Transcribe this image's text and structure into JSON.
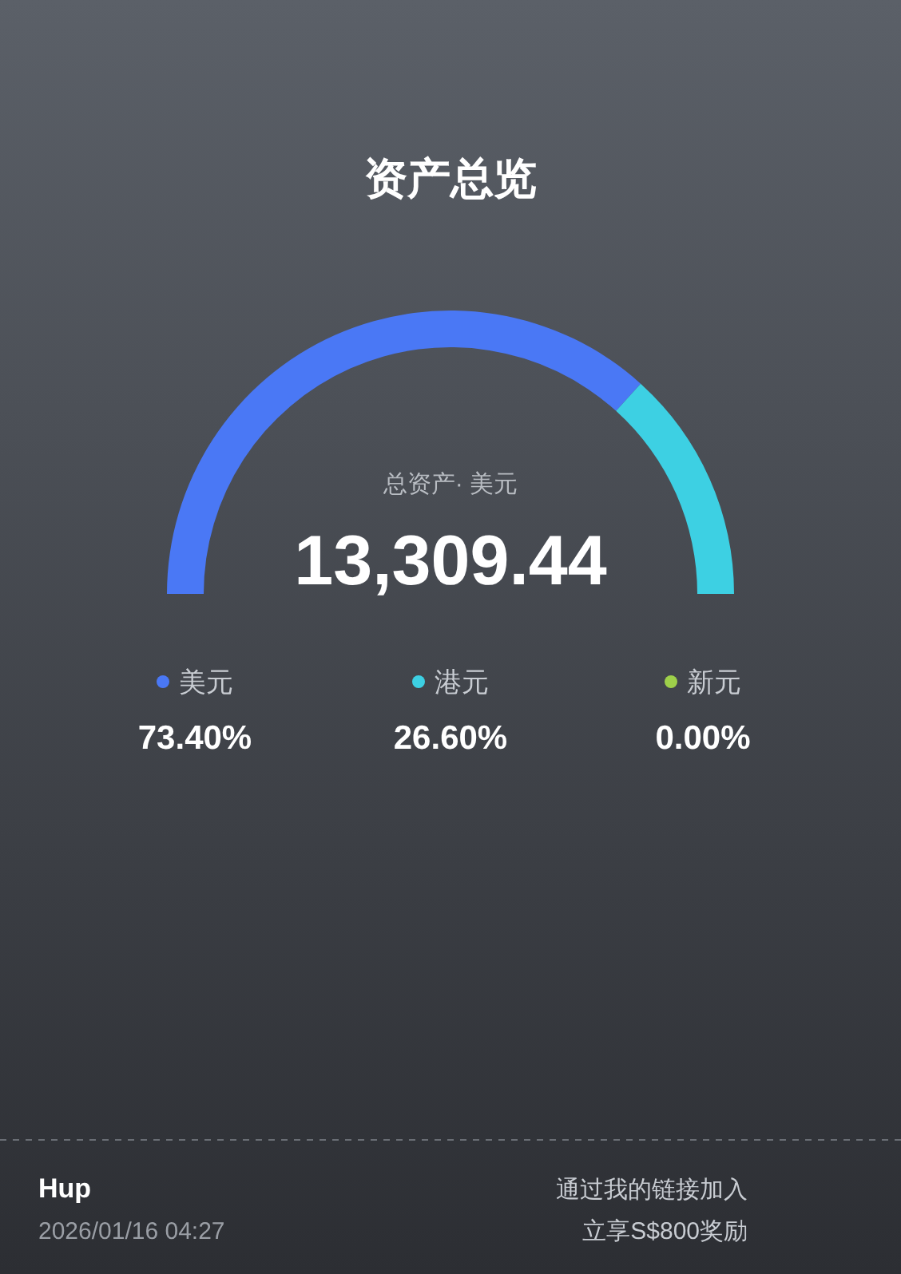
{
  "chart_data": {
    "type": "donut",
    "title": "资产总览",
    "categories": [
      "美元",
      "港元",
      "新元"
    ],
    "values": [
      73.4,
      26.6,
      0.0
    ],
    "colors": [
      "#4a78f5",
      "#3dd0e3",
      "#9ed04a"
    ],
    "value_labels": [
      "73.40%",
      "26.60%",
      "0.00%"
    ],
    "legend": "bottom",
    "annotations": [
      "总资产· 美元",
      "13,309.44",
      "Hup",
      "2026/01/16 04:27",
      "通过我的链接加入",
      "立享S$800奖励"
    ]
  }
}
